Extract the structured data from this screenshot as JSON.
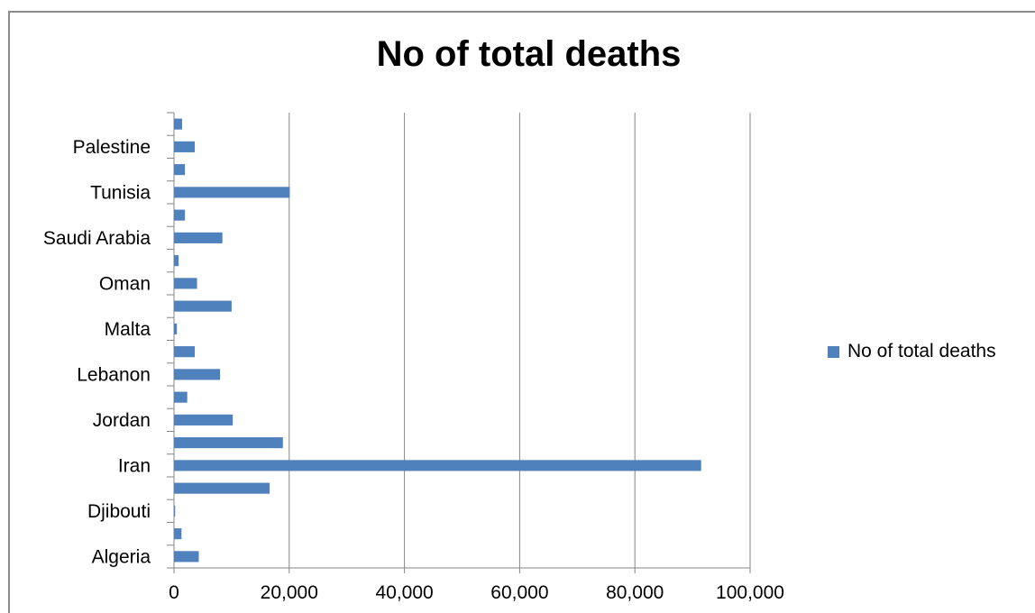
{
  "chart_data": {
    "type": "bar",
    "orientation": "horizontal",
    "title": "No of total deaths",
    "categories": [
      "Algeria",
      "",
      "Djibouti",
      "",
      "Iran",
      "",
      "Jordan",
      "",
      "Lebanon",
      "",
      "Malta",
      "",
      "Oman",
      "",
      "Saudi Arabia",
      "",
      "Tunisia",
      "",
      "Palestine",
      ""
    ],
    "series": [
      {
        "name": "No of total deaths",
        "color": "#4f81bd",
        "values": [
          4300,
          1300,
          200,
          16600,
          91500,
          18900,
          10200,
          2300,
          8000,
          3600,
          500,
          10000,
          4000,
          800,
          8400,
          1900,
          20100,
          1900,
          3600,
          1400
        ]
      }
    ],
    "xlim": [
      0,
      100000
    ],
    "xticks": [
      "0",
      "20,000",
      "40,000",
      "60,000",
      "80,000",
      "100,000"
    ],
    "xtick_values": [
      0,
      20000,
      40000,
      60000,
      80000,
      100000
    ],
    "grid": true,
    "legend_position": "right"
  }
}
